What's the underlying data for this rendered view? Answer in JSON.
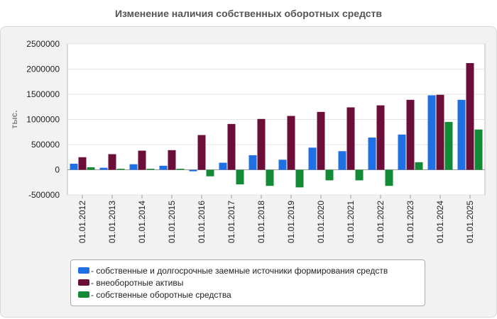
{
  "chart_data": {
    "type": "bar",
    "title": "Изменение наличия собственных оборотных средств",
    "xlabel": "",
    "ylabel": "тыс.",
    "ylim": [
      -500000,
      2500000
    ],
    "yticks": [
      -500000,
      0,
      500000,
      1000000,
      1500000,
      2000000,
      2500000
    ],
    "ytick_labels": [
      "-500000",
      "0",
      "500000",
      "1000000",
      "1500000",
      "2000000",
      "2500000"
    ],
    "grid": true,
    "legend_position": "bottom",
    "categories": [
      "01.01.2012",
      "01.01.2013",
      "01.01.2014",
      "01.01.2015",
      "01.01.2016",
      "01.01.2017",
      "01.01.2018",
      "01.01.2019",
      "01.01.2020",
      "01.01.2021",
      "01.01.2022",
      "01.01.2023",
      "01.01.2024",
      "01.01.2025"
    ],
    "series": [
      {
        "name": "собственные и долгосрочные заемные источники формирования средств",
        "legend_label": "- собственные и долгосрочные заемные источники формирования средств",
        "color": "#1f6fe5",
        "values": [
          120000,
          40000,
          110000,
          80000,
          -30000,
          140000,
          290000,
          200000,
          440000,
          370000,
          640000,
          700000,
          1480000,
          1390000
        ]
      },
      {
        "name": "внеоборотные активы",
        "legend_label": "- внеоборотные активы",
        "color": "#6b0f3a",
        "values": [
          250000,
          310000,
          380000,
          390000,
          690000,
          910000,
          1010000,
          1070000,
          1150000,
          1240000,
          1280000,
          1390000,
          1490000,
          2120000
        ]
      },
      {
        "name": "собственные оборотные средства",
        "legend_label": "- собственные оборотные средства",
        "color": "#138a36",
        "values": [
          50000,
          20000,
          20000,
          20000,
          -130000,
          -290000,
          -320000,
          -350000,
          -210000,
          -210000,
          -320000,
          150000,
          950000,
          800000
        ]
      }
    ]
  }
}
